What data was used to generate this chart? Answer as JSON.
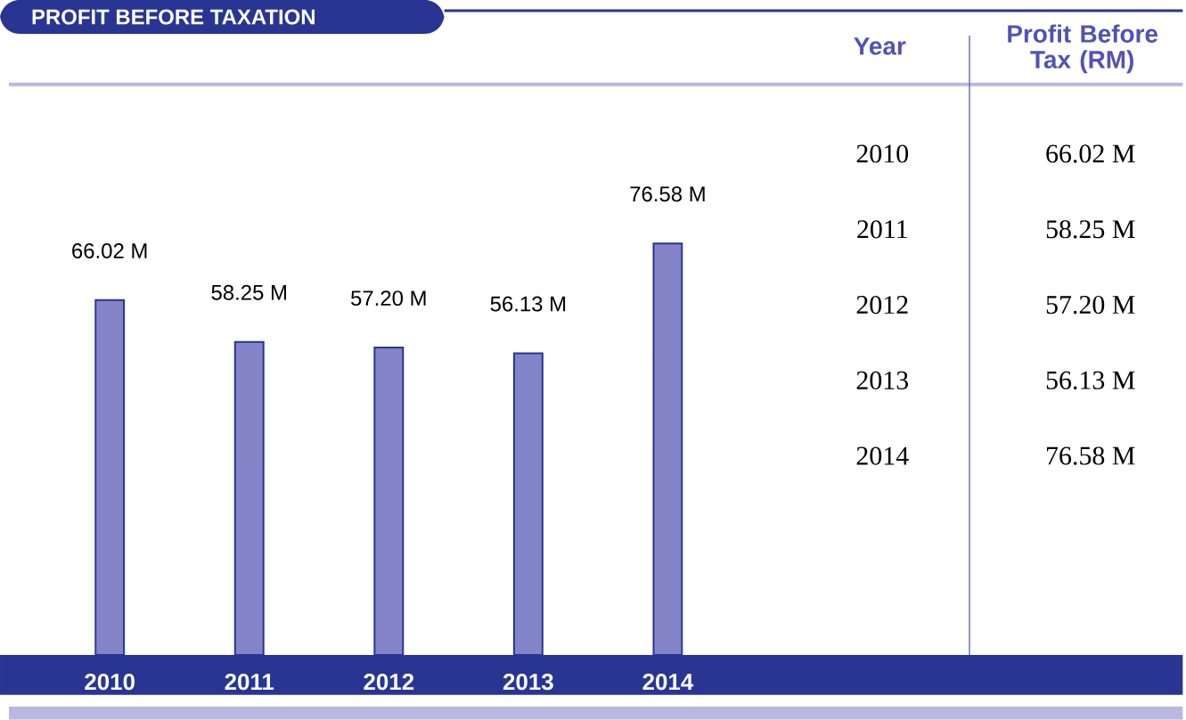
{
  "chart_data": {
    "type": "bar",
    "title": "PROFIT BEFORE TAXATION",
    "categories": [
      "2010",
      "2011",
      "2012",
      "2013",
      "2014"
    ],
    "values": [
      66.02,
      58.25,
      57.2,
      56.13,
      76.58
    ],
    "value_labels": [
      "66.02 M",
      "58.25 M",
      "57.20 M",
      "56.13 M",
      "76.58 M"
    ],
    "color": "#8484c8",
    "annotations": [
      "Year",
      "Profit Before Tax (RM)"
    ]
  }
}
